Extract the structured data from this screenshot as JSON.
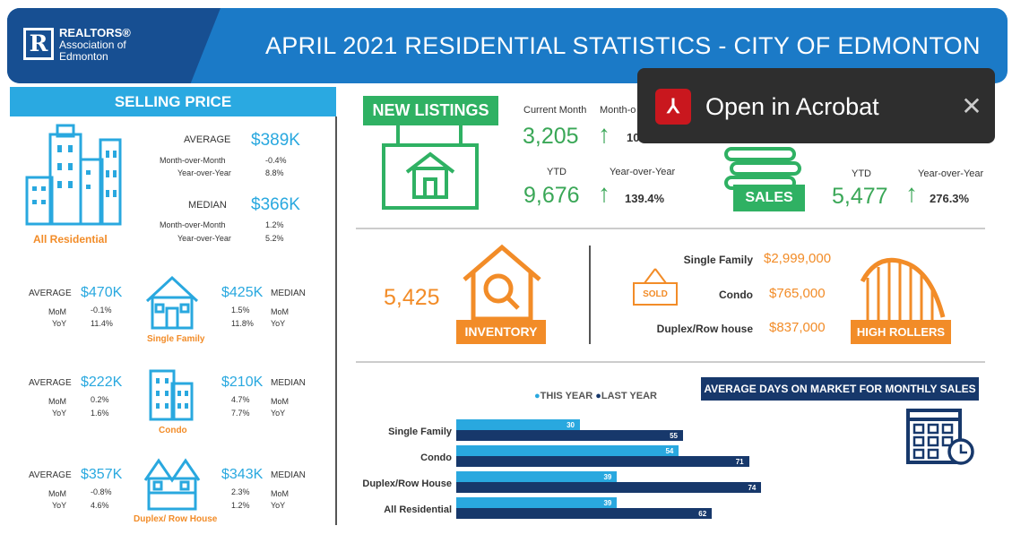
{
  "header": {
    "logo_mark": "R",
    "logo_line1": "REALTORS®",
    "logo_line2": "Association of Edmonton",
    "title": "APRIL 2021 RESIDENTIAL STATISTICS - CITY OF EDMONTON"
  },
  "selling_price": {
    "heading": "SELLING PRICE",
    "all": {
      "label": "All Residential",
      "average_label": "AVERAGE",
      "average": "$389K",
      "mom_label": "Month-over-Month",
      "avg_mom": "-0.4%",
      "yoy_label": "Year-over-Year",
      "avg_yoy": "8.8%",
      "median_label": "MEDIAN",
      "median": "$366K",
      "med_mom": "1.2%",
      "med_yoy": "5.2%"
    },
    "types": [
      {
        "label": "Single Family",
        "average": "$470K",
        "avg_mom": "-0.1%",
        "avg_yoy": "11.4%",
        "median": "$425K",
        "med_mom": "1.5%",
        "med_yoy": "11.8%"
      },
      {
        "label": "Condo",
        "average": "$222K",
        "avg_mom": "0.2%",
        "avg_yoy": "1.6%",
        "median": "$210K",
        "med_mom": "4.7%",
        "med_yoy": "7.7%"
      },
      {
        "label": "Duplex/ Row House",
        "average": "$357K",
        "avg_mom": "-0.8%",
        "avg_yoy": "4.6%",
        "median": "$343K",
        "med_mom": "2.3%",
        "med_yoy": "1.2%"
      }
    ],
    "average_label": "AVERAGE",
    "median_label": "MEDIAN",
    "mom": "MoM",
    "yoy": "YoY"
  },
  "new_listings": {
    "heading": "NEW LISTINGS",
    "current_month_label": "Current Month",
    "mom_label": "Month-o",
    "current_month": "3,205",
    "mom_partial": "10",
    "ytd_label": "YTD",
    "yoy_label": "Year-over-Year",
    "ytd": "9,676",
    "yoy": "139.4%"
  },
  "sales": {
    "heading": "SALES",
    "ytd_label": "YTD",
    "yoy_label": "Year-over-Year",
    "ytd": "5,477",
    "yoy": "276.3%"
  },
  "inventory": {
    "value": "5,425",
    "heading": "INVENTORY"
  },
  "high_rollers": {
    "heading": "HIGH ROLLERS",
    "sold_sign": "SOLD",
    "items": [
      {
        "label": "Single Family",
        "value": "$2,999,000"
      },
      {
        "label": "Condo",
        "value": "$765,000"
      },
      {
        "label": "Duplex/Row house",
        "value": "$837,000"
      }
    ]
  },
  "days_on_market": {
    "heading": "AVERAGE DAYS ON MARKET FOR MONTHLY SALES",
    "legend_this": "THIS YEAR",
    "legend_last": "LAST YEAR"
  },
  "chart_data": {
    "type": "bar",
    "orientation": "horizontal",
    "title": "AVERAGE DAYS ON MARKET FOR MONTHLY SALES",
    "categories": [
      "Single Family",
      "Condo",
      "Duplex/Row House",
      "All Residential"
    ],
    "series": [
      {
        "name": "THIS YEAR",
        "values": [
          30,
          54,
          39,
          39
        ],
        "color": "#29a8df"
      },
      {
        "name": "LAST YEAR",
        "values": [
          55,
          71,
          74,
          62
        ],
        "color": "#17386b"
      }
    ],
    "legend": "top",
    "grid": false
  },
  "toast": {
    "label": "Open in Acrobat",
    "close": "✕",
    "pdf_icon": "acrobat-icon"
  },
  "colors": {
    "blue": "#29a8df",
    "navy": "#17386b",
    "orange": "#f28c28",
    "green": "#2fb163"
  }
}
